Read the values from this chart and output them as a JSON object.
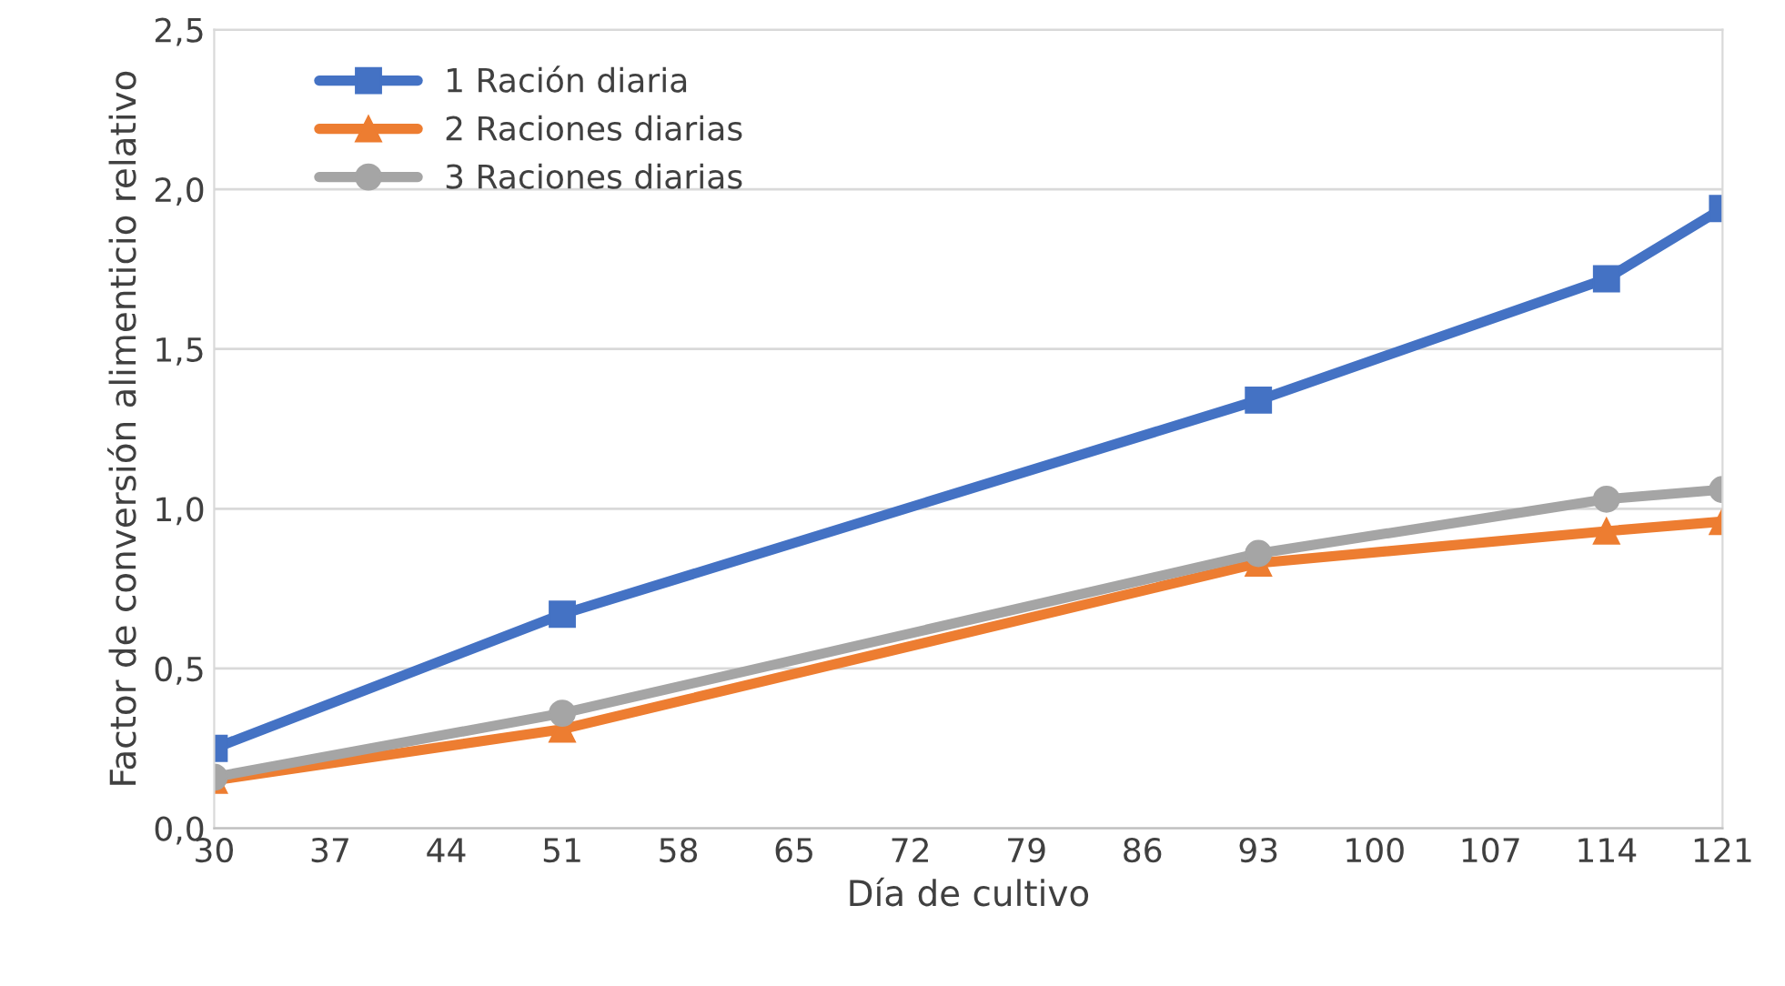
{
  "chart_data": {
    "type": "line",
    "xlabel": "Día de cultivo",
    "ylabel": "Factor de conversión alimenticio relativo",
    "x": [
      30,
      51,
      93,
      114,
      121
    ],
    "series": [
      {
        "name": "1 Ración diaria",
        "color": "#4472c4",
        "marker": "square",
        "values": [
          0.25,
          0.67,
          1.34,
          1.72,
          1.94
        ]
      },
      {
        "name": "2 Raciones diarias",
        "color": "#ed7d31",
        "marker": "triangle",
        "values": [
          0.15,
          0.31,
          0.83,
          0.93,
          0.96
        ]
      },
      {
        "name": "3 Raciones diarias",
        "color": "#a5a5a5",
        "marker": "circle",
        "values": [
          0.16,
          0.36,
          0.86,
          1.03,
          1.06
        ]
      }
    ],
    "xlim": [
      30,
      121
    ],
    "xticks": [
      30,
      37,
      44,
      51,
      58,
      65,
      72,
      79,
      86,
      93,
      100,
      107,
      114,
      121
    ],
    "ylim": [
      0,
      2.5
    ],
    "yticks": [
      {
        "value": 0,
        "label": "0,0"
      },
      {
        "value": 0.5,
        "label": "0,5"
      },
      {
        "value": 1,
        "label": "1,0"
      },
      {
        "value": 1.5,
        "label": "1,5"
      },
      {
        "value": 2,
        "label": "2,0"
      },
      {
        "value": 2.5,
        "label": "2,5"
      }
    ],
    "grid": "y",
    "legend": "top left",
    "line_style": "solid"
  }
}
